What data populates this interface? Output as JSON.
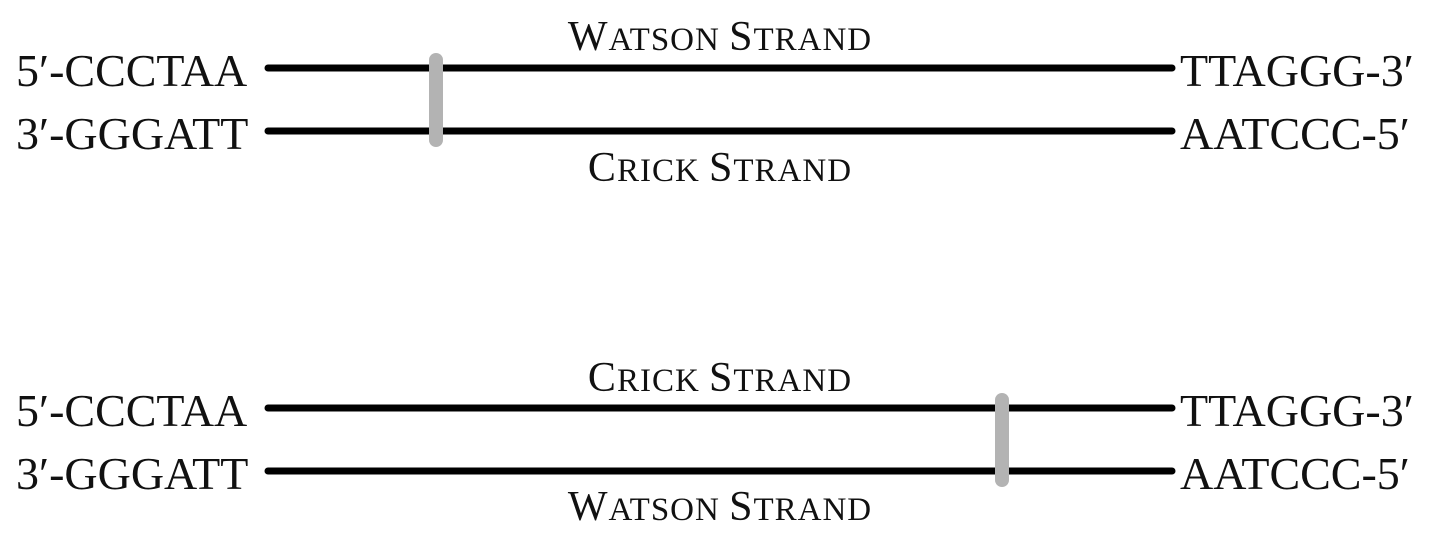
{
  "colors": {
    "strand": "#000000",
    "marker": "#b3b3b3",
    "text": "#111111"
  },
  "panels": [
    {
      "top_left": "5′-CCCTAA",
      "bottom_left": "3′-GGGATT",
      "top_right": "TTAGGG-3′",
      "bottom_right": "AATCCC-5′",
      "label_above": {
        "initial": "W",
        "rest": "ATSON ",
        "initial2": "S",
        "rest2": "TRAND"
      },
      "label_below": {
        "initial": "C",
        "rest": "RICK ",
        "initial2": "S",
        "rest2": "TRAND"
      }
    },
    {
      "top_left": "5′-CCCTAA",
      "bottom_left": "3′-GGGATT",
      "top_right": "TTAGGG-3′",
      "bottom_right": "AATCCC-5′",
      "label_above": {
        "initial": "C",
        "rest": "RICK ",
        "initial2": "S",
        "rest2": "TRAND"
      },
      "label_below": {
        "initial": "W",
        "rest": "ATSON ",
        "initial2": "S",
        "rest2": "TRAND"
      }
    }
  ]
}
